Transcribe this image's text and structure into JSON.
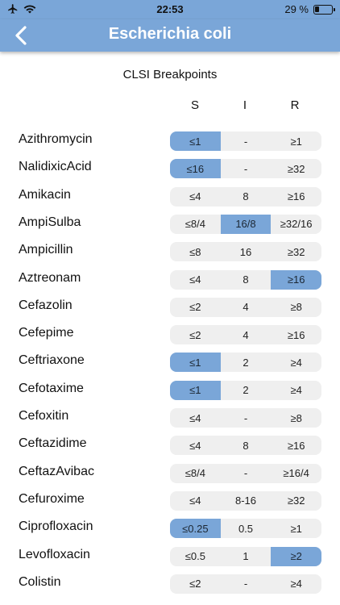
{
  "status": {
    "time": "22:53",
    "battery": "29 %",
    "battery_level": 0.29
  },
  "nav": {
    "title": "Escherichia coli",
    "back_icon": "chevron-left-icon"
  },
  "section_title": "CLSI Breakpoints",
  "columns": [
    "S",
    "I",
    "R"
  ],
  "colors": {
    "accent": "#7aa6d8",
    "cell_bg": "#efefef"
  },
  "drugs": [
    {
      "name": "Azithromycin",
      "s": "≤1",
      "i": "-",
      "r": "≥1",
      "highlight": "s"
    },
    {
      "name": "NalidixicAcid",
      "s": "≤16",
      "i": "-",
      "r": "≥32",
      "highlight": "s"
    },
    {
      "name": "Amikacin",
      "s": "≤4",
      "i": "8",
      "r": "≥16",
      "highlight": ""
    },
    {
      "name": "AmpiSulba",
      "s": "≤8/4",
      "i": "16/8",
      "r": "≥32/16",
      "highlight": "i"
    },
    {
      "name": "Ampicillin",
      "s": "≤8",
      "i": "16",
      "r": "≥32",
      "highlight": ""
    },
    {
      "name": "Aztreonam",
      "s": "≤4",
      "i": "8",
      "r": "≥16",
      "highlight": "r"
    },
    {
      "name": "Cefazolin",
      "s": "≤2",
      "i": "4",
      "r": "≥8",
      "highlight": ""
    },
    {
      "name": "Cefepime",
      "s": "≤2",
      "i": "4",
      "r": "≥16",
      "highlight": ""
    },
    {
      "name": "Ceftriaxone",
      "s": "≤1",
      "i": "2",
      "r": "≥4",
      "highlight": "s"
    },
    {
      "name": "Cefotaxime",
      "s": "≤1",
      "i": "2",
      "r": "≥4",
      "highlight": "s"
    },
    {
      "name": "Cefoxitin",
      "s": "≤4",
      "i": "-",
      "r": "≥8",
      "highlight": ""
    },
    {
      "name": "Ceftazidime",
      "s": "≤4",
      "i": "8",
      "r": "≥16",
      "highlight": ""
    },
    {
      "name": "CeftazAvibac",
      "s": "≤8/4",
      "i": "-",
      "r": "≥16/4",
      "highlight": ""
    },
    {
      "name": "Cefuroxime",
      "s": "≤4",
      "i": "8-16",
      "r": "≥32",
      "highlight": ""
    },
    {
      "name": "Ciprofloxacin",
      "s": "≤0.25",
      "i": "0.5",
      "r": "≥1",
      "highlight": "s"
    },
    {
      "name": "Levofloxacin",
      "s": "≤0.5",
      "i": "1",
      "r": "≥2",
      "highlight": "r"
    },
    {
      "name": "Colistin",
      "s": "≤2",
      "i": "-",
      "r": "≥4",
      "highlight": ""
    }
  ]
}
